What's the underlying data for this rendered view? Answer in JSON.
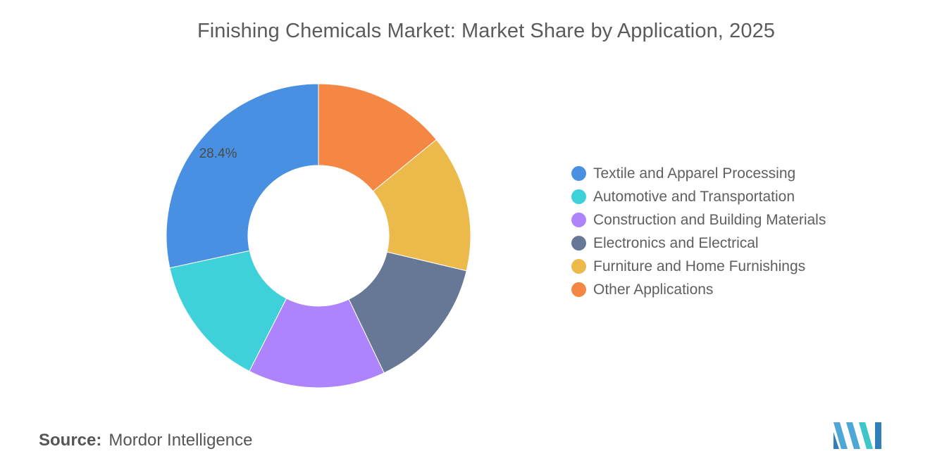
{
  "title": "Finishing Chemicals Market: Market Share by Application, 2025",
  "source": {
    "label": "Source:",
    "name": "Mordor Intelligence"
  },
  "colors": {
    "Textile and Apparel Processing": "#4a90e2",
    "Automotive and Transportation": "#3ed1da",
    "Construction and Building Materials": "#ad84fb",
    "Electronics and Electrical": "#677896",
    "Furniture and Home Furnishings": "#ecb94b",
    "Other Applications": "#f48744"
  },
  "chart_data": {
    "type": "pie",
    "title": "Finishing Chemicals Market: Market Share by Application, 2025",
    "categories": [
      "Textile and Apparel Processing",
      "Automotive and Transportation",
      "Construction and Building Materials",
      "Electronics and Electrical",
      "Furniture and Home Furnishings",
      "Other Applications"
    ],
    "values": [
      28.4,
      14.1,
      14.6,
      14.2,
      14.6,
      14.1
    ],
    "data_labels": [
      "28.4%",
      "",
      "",
      "",
      "",
      ""
    ],
    "donut": true,
    "legend_position": "right"
  }
}
